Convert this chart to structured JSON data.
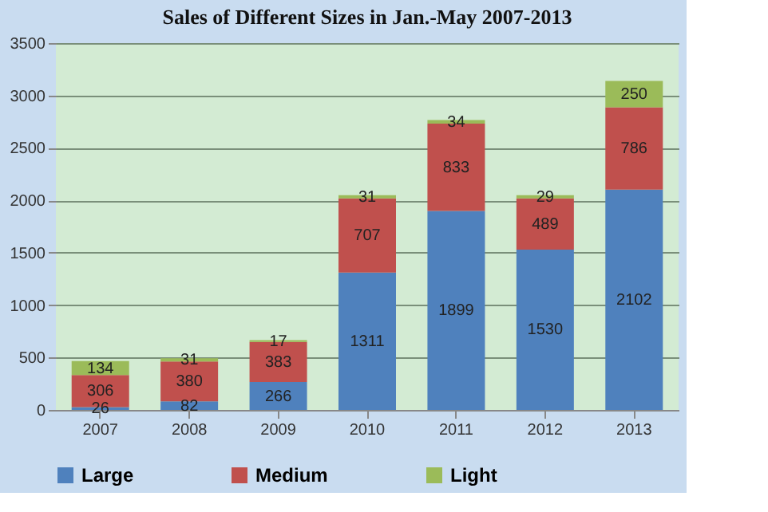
{
  "chart_data": {
    "type": "bar",
    "title": "Sales of Different Sizes in Jan.-May 2007-2013",
    "categories": [
      "2007",
      "2008",
      "2009",
      "2010",
      "2011",
      "2012",
      "2013"
    ],
    "stacked": true,
    "data_labels": true,
    "legend": "bottom",
    "grid": "y",
    "ylim": [
      0,
      3500
    ],
    "yticks": [
      0,
      500,
      1000,
      1500,
      2000,
      2500,
      3000,
      3500
    ],
    "series": [
      {
        "name": "Large",
        "color": "#4f81bd",
        "values": [
          26,
          82,
          266,
          1311,
          1899,
          1530,
          2102
        ]
      },
      {
        "name": "Medium",
        "color": "#c0504d",
        "values": [
          306,
          380,
          383,
          707,
          833,
          489,
          786
        ]
      },
      {
        "name": "Light",
        "color": "#9bbb59",
        "values": [
          134,
          31,
          17,
          31,
          34,
          29,
          250
        ]
      }
    ]
  }
}
